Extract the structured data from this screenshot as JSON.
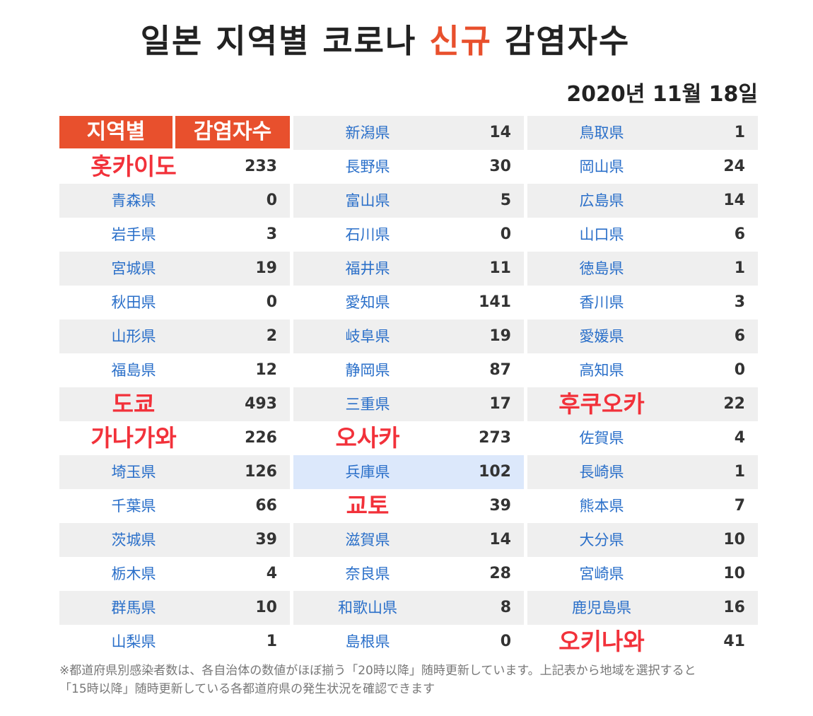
{
  "title": {
    "before": "일본 지역별 코로나 ",
    "highlight": "신규",
    "after": " 감염자수"
  },
  "date": "2020년 11월 18일",
  "header": {
    "region": "지역별",
    "cases": "감염자수"
  },
  "col1": [
    {
      "name": "홋카이도",
      "value": "233",
      "big": true
    },
    {
      "name": "青森県",
      "value": "0"
    },
    {
      "name": "岩手県",
      "value": "3"
    },
    {
      "name": "宮城県",
      "value": "19"
    },
    {
      "name": "秋田県",
      "value": "0"
    },
    {
      "name": "山形県",
      "value": "2"
    },
    {
      "name": "福島県",
      "value": "12"
    },
    {
      "name": "도쿄",
      "value": "493",
      "big": true
    },
    {
      "name": "가나가와",
      "value": "226",
      "big": true
    },
    {
      "name": "埼玉県",
      "value": "126"
    },
    {
      "name": "千葉県",
      "value": "66"
    },
    {
      "name": "茨城県",
      "value": "39"
    },
    {
      "name": "栃木県",
      "value": "4"
    },
    {
      "name": "群馬県",
      "value": "10"
    },
    {
      "name": "山梨県",
      "value": "1"
    }
  ],
  "col2": [
    {
      "name": "新潟県",
      "value": "14"
    },
    {
      "name": "長野県",
      "value": "30"
    },
    {
      "name": "富山県",
      "value": "5"
    },
    {
      "name": "石川県",
      "value": "0"
    },
    {
      "name": "福井県",
      "value": "11"
    },
    {
      "name": "愛知県",
      "value": "141"
    },
    {
      "name": "岐阜県",
      "value": "19"
    },
    {
      "name": "静岡県",
      "value": "87"
    },
    {
      "name": "三重県",
      "value": "17"
    },
    {
      "name": "오사카",
      "value": "273",
      "big": true
    },
    {
      "name": "兵庫県",
      "value": "102",
      "selected": true
    },
    {
      "name": "교토",
      "value": "39",
      "big": true
    },
    {
      "name": "滋賀県",
      "value": "14"
    },
    {
      "name": "奈良県",
      "value": "28"
    },
    {
      "name": "和歌山県",
      "value": "8"
    },
    {
      "name": "島根県",
      "value": "0"
    }
  ],
  "col3": [
    {
      "name": "鳥取県",
      "value": "1"
    },
    {
      "name": "岡山県",
      "value": "24"
    },
    {
      "name": "広島県",
      "value": "14"
    },
    {
      "name": "山口県",
      "value": "6"
    },
    {
      "name": "徳島県",
      "value": "1"
    },
    {
      "name": "香川県",
      "value": "3"
    },
    {
      "name": "愛媛県",
      "value": "6"
    },
    {
      "name": "高知県",
      "value": "0"
    },
    {
      "name": "후쿠오카",
      "value": "22",
      "big": true
    },
    {
      "name": "佐賀県",
      "value": "4"
    },
    {
      "name": "長崎県",
      "value": "1"
    },
    {
      "name": "熊本県",
      "value": "7"
    },
    {
      "name": "大分県",
      "value": "10"
    },
    {
      "name": "宮崎県",
      "value": "10"
    },
    {
      "name": "鹿児島県",
      "value": "16"
    },
    {
      "name": "오키나와",
      "value": "41",
      "big": true
    }
  ],
  "note": {
    "line1": "※都道府県別感染者数は、各自治体の数値がほぼ揃う「20時以降」随時更新しています。上記表から地域を選択すると",
    "line2": "「15時以降」随時更新している各都道府県の発生状況を確認できます"
  },
  "colors": {
    "accent": "#e8502d",
    "prefecture_link": "#2a6fc9",
    "highlight_region": "#f2313a",
    "selected_row": "#dce8fb"
  }
}
